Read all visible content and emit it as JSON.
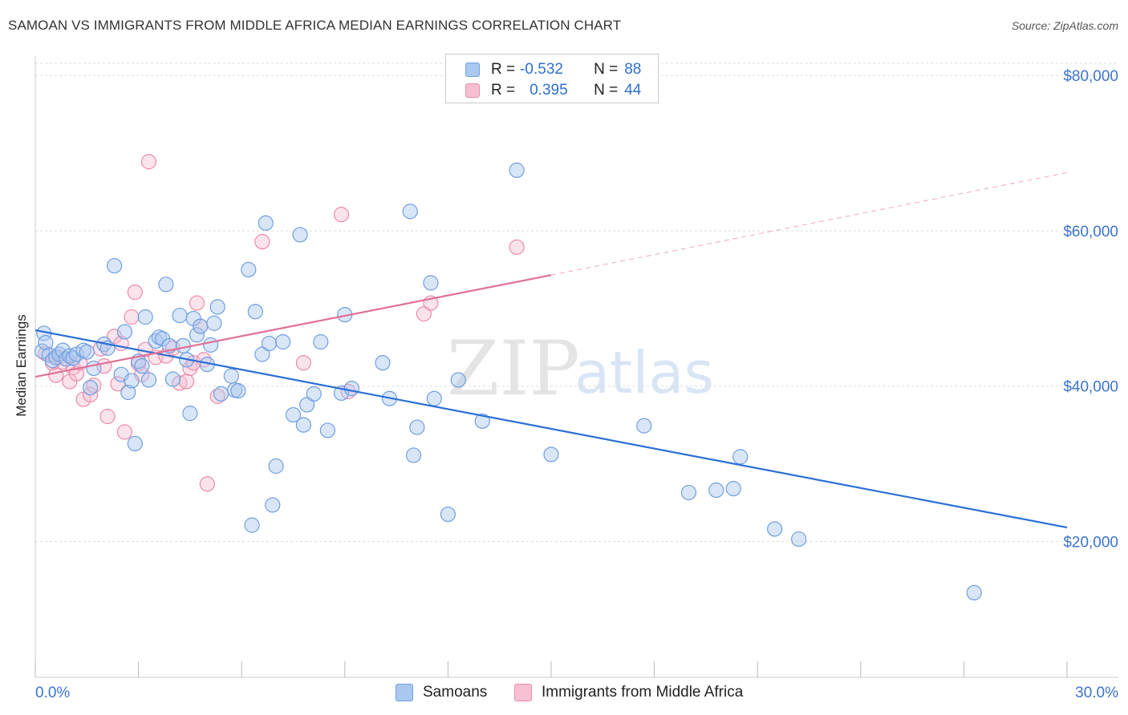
{
  "title": "SAMOAN VS IMMIGRANTS FROM MIDDLE AFRICA MEDIAN EARNINGS CORRELATION CHART",
  "source": "Source: ZipAtlas.com",
  "watermark": {
    "zip": "ZIP",
    "atlas": "atlas"
  },
  "legend": {
    "rows": [
      {
        "r_label": "R =",
        "r_value": "-0.532",
        "n_label": "N =",
        "n_value": "88"
      },
      {
        "r_label": "R =",
        "r_value": "0.395",
        "n_label": "N =",
        "n_value": "44"
      }
    ]
  },
  "bottom_legend": {
    "series1": "Samoans",
    "series2": "Immigrants from Middle Africa"
  },
  "colors": {
    "samoans_fill": "#aac8f0",
    "samoans_stroke": "#6f9fe0",
    "samoans_line": "#2a6fd6",
    "middle_africa_fill": "#f7c0d2",
    "middle_africa_stroke": "#ec8aaa",
    "middle_africa_line": "#e07098",
    "axis_text": "#3d74cc",
    "grid": "#dddddd"
  },
  "chart_data": {
    "type": "scatter",
    "title": "SAMOAN VS IMMIGRANTS FROM MIDDLE AFRICA MEDIAN EARNINGS CORRELATION CHART",
    "xlabel": "",
    "ylabel": "Median Earnings",
    "xlim": [
      0,
      30
    ],
    "ylim": [
      2500,
      82500
    ],
    "x_tick_labels": [
      "0.0%",
      "30.0%"
    ],
    "y_ticks": [
      20000,
      40000,
      60000,
      80000
    ],
    "y_tick_labels": [
      "$20,000",
      "$40,000",
      "$60,000",
      "$80,000"
    ],
    "grid": true,
    "legend_position": "top-center",
    "series": [
      {
        "name": "Samoans",
        "R": -0.532,
        "N": 88,
        "trend": {
          "x": [
            0,
            30
          ],
          "y": [
            47200,
            21800
          ]
        },
        "points": [
          [
            0.2,
            44500
          ],
          [
            0.25,
            46800
          ],
          [
            0.3,
            45600
          ],
          [
            0.4,
            44000
          ],
          [
            0.5,
            43300
          ],
          [
            0.6,
            43700
          ],
          [
            0.7,
            44100
          ],
          [
            0.8,
            44600
          ],
          [
            0.9,
            43500
          ],
          [
            1.0,
            43900
          ],
          [
            1.1,
            43600
          ],
          [
            1.2,
            44100
          ],
          [
            1.4,
            44600
          ],
          [
            1.5,
            44400
          ],
          [
            1.6,
            39800
          ],
          [
            1.7,
            42300
          ],
          [
            2.0,
            45400
          ],
          [
            2.1,
            44900
          ],
          [
            2.3,
            55500
          ],
          [
            2.5,
            41500
          ],
          [
            2.6,
            47000
          ],
          [
            2.7,
            39200
          ],
          [
            2.8,
            40700
          ],
          [
            2.9,
            32600
          ],
          [
            3.0,
            43200
          ],
          [
            3.1,
            42600
          ],
          [
            3.2,
            48900
          ],
          [
            3.3,
            40800
          ],
          [
            3.5,
            45800
          ],
          [
            3.6,
            46300
          ],
          [
            3.7,
            46100
          ],
          [
            3.8,
            53100
          ],
          [
            3.9,
            45200
          ],
          [
            4.0,
            40900
          ],
          [
            4.2,
            49100
          ],
          [
            4.3,
            45200
          ],
          [
            4.4,
            43400
          ],
          [
            4.5,
            36500
          ],
          [
            4.6,
            48700
          ],
          [
            4.7,
            46600
          ],
          [
            4.8,
            47700
          ],
          [
            5.0,
            42800
          ],
          [
            5.1,
            45300
          ],
          [
            5.2,
            48100
          ],
          [
            5.3,
            50200
          ],
          [
            5.4,
            39000
          ],
          [
            5.7,
            41300
          ],
          [
            5.8,
            39500
          ],
          [
            5.9,
            39400
          ],
          [
            6.2,
            55000
          ],
          [
            6.3,
            22100
          ],
          [
            6.4,
            49600
          ],
          [
            6.6,
            44100
          ],
          [
            6.7,
            61000
          ],
          [
            6.8,
            45500
          ],
          [
            6.9,
            24700
          ],
          [
            7.0,
            29700
          ],
          [
            7.2,
            45700
          ],
          [
            7.5,
            36300
          ],
          [
            7.7,
            59500
          ],
          [
            7.8,
            35000
          ],
          [
            7.9,
            37600
          ],
          [
            8.1,
            39000
          ],
          [
            8.3,
            45700
          ],
          [
            8.5,
            34300
          ],
          [
            8.9,
            39100
          ],
          [
            9.0,
            49200
          ],
          [
            9.2,
            39700
          ],
          [
            10.1,
            43000
          ],
          [
            10.3,
            38400
          ],
          [
            10.9,
            62500
          ],
          [
            11.0,
            31100
          ],
          [
            11.1,
            34700
          ],
          [
            11.5,
            53300
          ],
          [
            11.6,
            38400
          ],
          [
            12.0,
            23500
          ],
          [
            12.3,
            40800
          ],
          [
            13.0,
            35500
          ],
          [
            14.0,
            67800
          ],
          [
            15.0,
            31200
          ],
          [
            17.7,
            34900
          ],
          [
            19.0,
            26300
          ],
          [
            19.8,
            26600
          ],
          [
            20.3,
            26800
          ],
          [
            20.5,
            30900
          ],
          [
            21.5,
            21600
          ],
          [
            22.2,
            20300
          ],
          [
            27.3,
            13400
          ]
        ]
      },
      {
        "name": "Immigrants from Middle Africa",
        "R": 0.395,
        "N": 44,
        "trend": {
          "x": [
            0,
            15
          ],
          "y": [
            41200,
            54300
          ],
          "extended_to": {
            "x": 30,
            "y": 67500
          }
        },
        "points": [
          [
            0.3,
            44200
          ],
          [
            0.5,
            43000
          ],
          [
            0.6,
            41400
          ],
          [
            0.7,
            43700
          ],
          [
            0.8,
            43100
          ],
          [
            1.0,
            40600
          ],
          [
            1.1,
            42400
          ],
          [
            1.2,
            41600
          ],
          [
            1.3,
            43000
          ],
          [
            1.4,
            38300
          ],
          [
            1.6,
            38900
          ],
          [
            1.7,
            40100
          ],
          [
            1.9,
            44800
          ],
          [
            2.0,
            42600
          ],
          [
            2.1,
            36100
          ],
          [
            2.3,
            46400
          ],
          [
            2.4,
            40300
          ],
          [
            2.5,
            45500
          ],
          [
            2.6,
            34100
          ],
          [
            2.8,
            48900
          ],
          [
            2.9,
            52100
          ],
          [
            3.0,
            42900
          ],
          [
            3.1,
            41500
          ],
          [
            3.2,
            44700
          ],
          [
            3.3,
            68900
          ],
          [
            3.5,
            43700
          ],
          [
            3.8,
            43900
          ],
          [
            4.0,
            44900
          ],
          [
            4.2,
            40400
          ],
          [
            4.4,
            40600
          ],
          [
            4.5,
            42300
          ],
          [
            4.6,
            43000
          ],
          [
            4.7,
            50700
          ],
          [
            4.8,
            47700
          ],
          [
            4.9,
            43400
          ],
          [
            5.0,
            27400
          ],
          [
            5.3,
            38700
          ],
          [
            6.6,
            58600
          ],
          [
            7.8,
            43000
          ],
          [
            8.9,
            62100
          ],
          [
            9.1,
            39300
          ],
          [
            11.3,
            49300
          ],
          [
            11.5,
            50700
          ],
          [
            14.0,
            57900
          ]
        ]
      }
    ]
  }
}
